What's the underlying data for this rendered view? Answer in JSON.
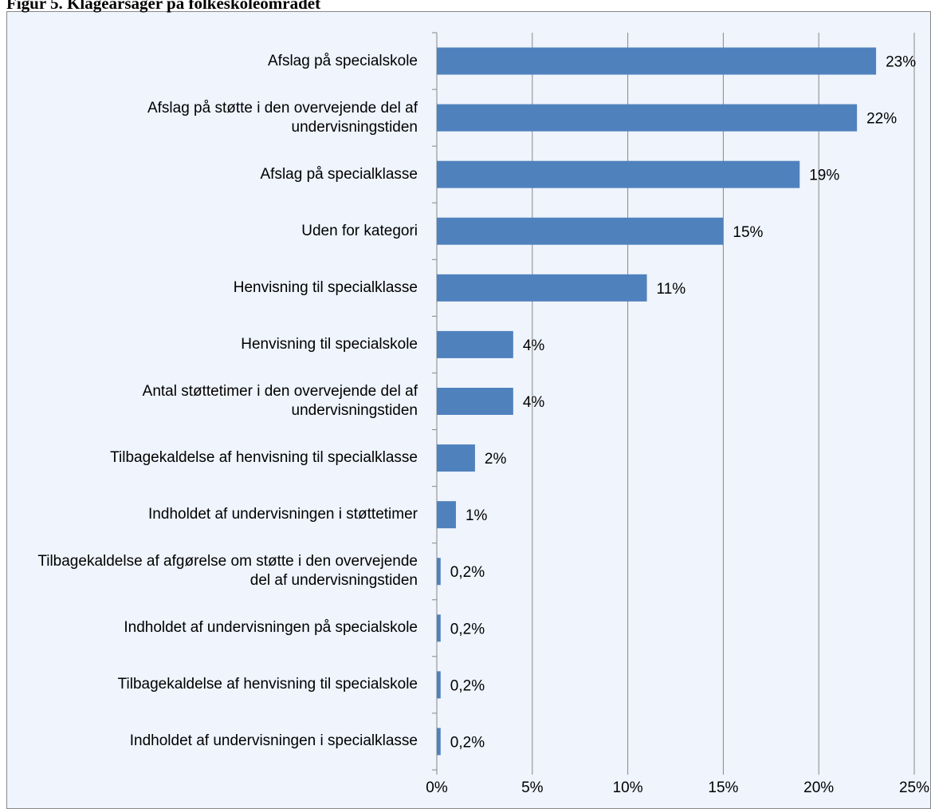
{
  "chart_data": {
    "type": "bar",
    "orientation": "horizontal",
    "title": "Figur 5. Klageårsager på folkeskoleområdet",
    "categories": [
      "Afslag på specialskole",
      "Afslag på støtte i den overvejende del af undervisningstiden",
      "Afslag på specialklasse",
      "Uden for kategori",
      "Henvisning til specialklasse",
      "Henvisning til specialskole",
      "Antal støttetimer i den overvejende del af undervisningstiden",
      "Tilbagekaldelse af henvisning til specialklasse",
      "Indholdet af undervisningen i støttetimer",
      "Tilbagekaldelse af afgørelse om støtte i den overvejende del af undervisningstiden",
      "Indholdet af undervisningen på specialskole",
      "Tilbagekaldelse af henvisning til specialskole",
      "Indholdet af undervisningen i specialklasse"
    ],
    "values": [
      23,
      22,
      19,
      15,
      11,
      4,
      4,
      2,
      1,
      0.2,
      0.2,
      0.2,
      0.2
    ],
    "value_labels": [
      "23%",
      "22%",
      "19%",
      "15%",
      "11%",
      "4%",
      "4%",
      "2%",
      "1%",
      "0,2%",
      "0,2%",
      "0,2%",
      "0,2%"
    ],
    "color": "#4f81bd",
    "xlim": [
      0,
      25
    ],
    "xticks": [
      {
        "value": 0,
        "label": "0%"
      },
      {
        "value": 5,
        "label": "5%"
      },
      {
        "value": 10,
        "label": "10%"
      },
      {
        "value": 15,
        "label": "15%"
      },
      {
        "value": 20,
        "label": "20%"
      },
      {
        "value": 25,
        "label": "25%"
      }
    ],
    "grid": true
  }
}
